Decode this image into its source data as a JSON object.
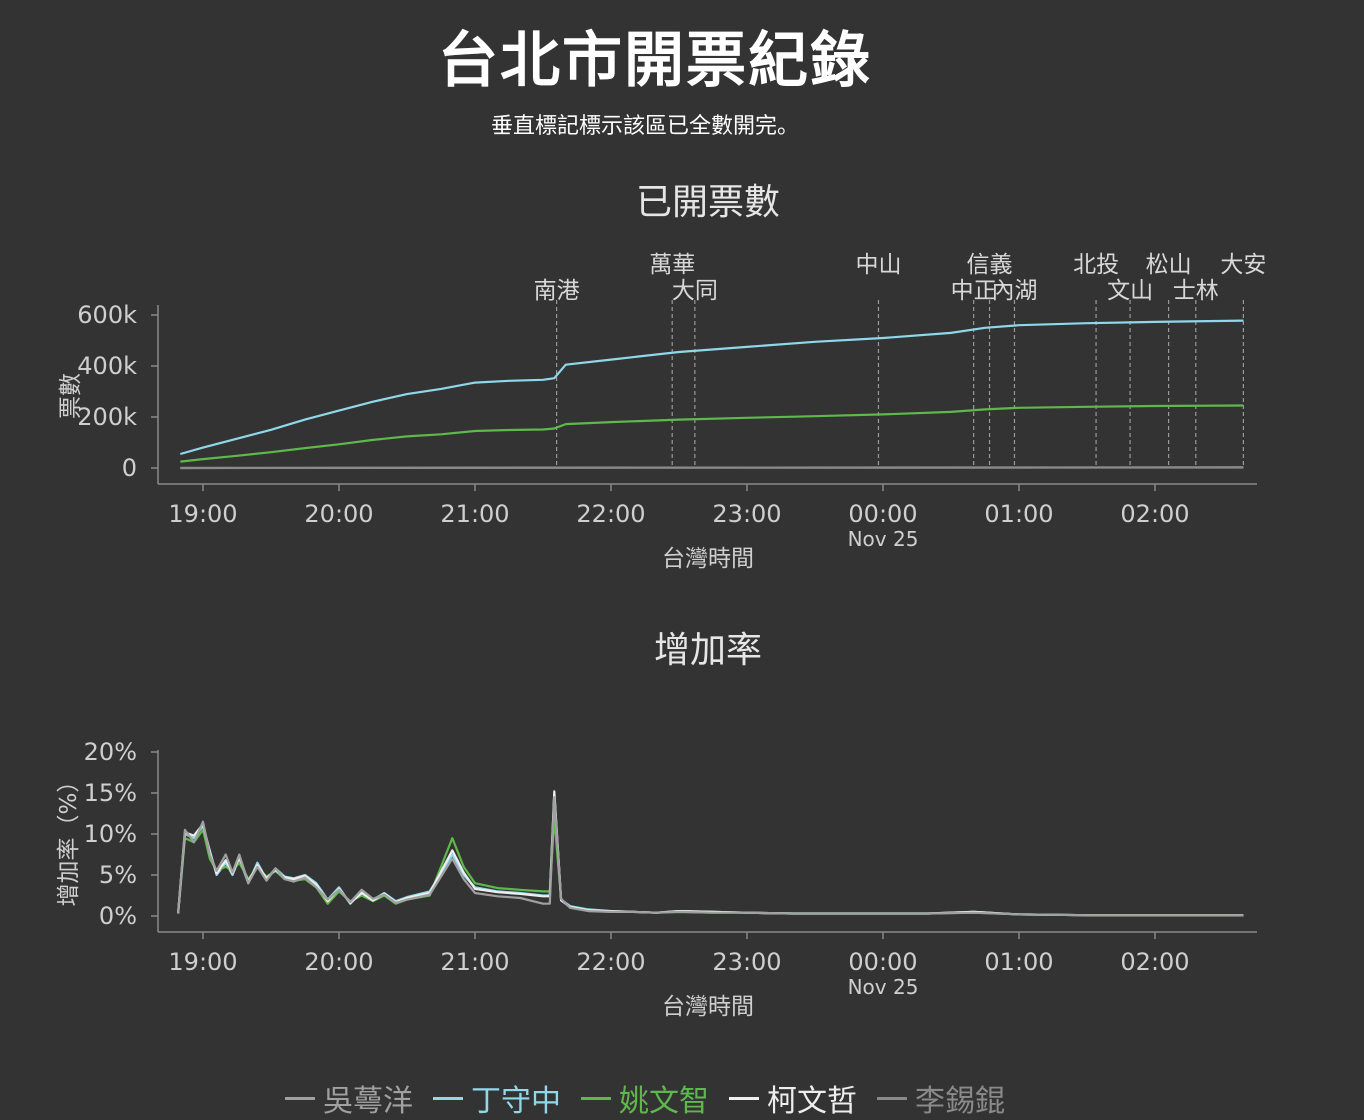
{
  "page": {
    "title": "台北市開票紀錄",
    "subtitle": "垂直標記標示該區已全數開完。"
  },
  "colors": {
    "background": "#333333",
    "axis": "#8a8a8a",
    "marker": "#9a9a9a"
  },
  "legend": [
    {
      "name": "吳蕚洋",
      "color": "#a0a0a0"
    },
    {
      "name": "丁守中",
      "color": "#8fd8ea"
    },
    {
      "name": "姚文智",
      "color": "#5fb84b"
    },
    {
      "name": "柯文哲",
      "color": "#eeeeee"
    },
    {
      "name": "李錫錕",
      "color": "#8a8a8a"
    }
  ],
  "chart_data": [
    {
      "type": "line",
      "title": "已開票數",
      "xlabel": "台灣時間",
      "ylabel": "票數",
      "x_ticks": [
        "19:00",
        "20:00",
        "21:00",
        "22:00",
        "23:00",
        "00:00",
        "01:00",
        "02:00"
      ],
      "x_date_label": "Nov 25",
      "y_ticks": [
        "0",
        "200k",
        "400k",
        "600k"
      ],
      "ylim": [
        0,
        620000
      ],
      "district_markers": [
        {
          "name": "南港",
          "time": "21:36"
        },
        {
          "name": "萬華",
          "time": "22:27"
        },
        {
          "name": "大同",
          "time": "22:37"
        },
        {
          "name": "中山",
          "time": "23:58"
        },
        {
          "name": "中正",
          "time": "00:40"
        },
        {
          "name": "信義",
          "time": "00:47"
        },
        {
          "name": "內湖",
          "time": "00:58"
        },
        {
          "name": "北投",
          "time": "01:34"
        },
        {
          "name": "文山",
          "time": "01:49"
        },
        {
          "name": "松山",
          "time": "02:06"
        },
        {
          "name": "士林",
          "time": "02:18"
        },
        {
          "name": "大安",
          "time": "02:39"
        }
      ],
      "series": [
        {
          "name": "丁守中",
          "color": "#8fd8ea",
          "times": [
            "18:50",
            "19:00",
            "19:15",
            "19:30",
            "19:45",
            "20:00",
            "20:15",
            "20:30",
            "20:45",
            "21:00",
            "21:15",
            "21:30",
            "21:35",
            "21:40",
            "22:00",
            "22:30",
            "23:00",
            "23:30",
            "00:00",
            "00:30",
            "00:45",
            "01:00",
            "01:30",
            "02:00",
            "02:39"
          ],
          "values": [
            55000,
            80000,
            115000,
            150000,
            190000,
            225000,
            260000,
            290000,
            310000,
            335000,
            342000,
            346000,
            352000,
            405000,
            425000,
            455000,
            475000,
            495000,
            510000,
            530000,
            550000,
            560000,
            568000,
            573000,
            578000
          ]
        },
        {
          "name": "姚文智",
          "color": "#5fb84b",
          "times": [
            "18:50",
            "19:00",
            "19:15",
            "19:30",
            "19:45",
            "20:00",
            "20:15",
            "20:30",
            "20:45",
            "21:00",
            "21:15",
            "21:30",
            "21:35",
            "21:40",
            "22:00",
            "22:30",
            "23:00",
            "23:30",
            "00:00",
            "00:30",
            "00:45",
            "01:00",
            "01:30",
            "02:00",
            "02:39"
          ],
          "values": [
            25000,
            35000,
            48000,
            62000,
            78000,
            93000,
            110000,
            124000,
            132000,
            145000,
            149000,
            151000,
            155000,
            172000,
            180000,
            190000,
            197000,
            203000,
            210000,
            220000,
            230000,
            236000,
            240000,
            243000,
            245000
          ]
        },
        {
          "name": "吳蕚洋",
          "color": "#a0a0a0",
          "times": [
            "18:50",
            "21:40",
            "02:39"
          ],
          "values": [
            0,
            1500,
            2500
          ]
        },
        {
          "name": "李錫錕",
          "color": "#8a8a8a",
          "times": [
            "18:50",
            "21:40",
            "02:39"
          ],
          "values": [
            0,
            1000,
            1800
          ]
        }
      ]
    },
    {
      "type": "line",
      "title": "增加率",
      "xlabel": "台灣時間",
      "ylabel": "增加率（%）",
      "x_ticks": [
        "19:00",
        "20:00",
        "21:00",
        "22:00",
        "23:00",
        "00:00",
        "01:00",
        "02:00"
      ],
      "x_date_label": "Nov 25",
      "y_ticks": [
        "0%",
        "5%",
        "10%",
        "15%",
        "20%"
      ],
      "ylim": [
        0,
        20
      ],
      "series": [
        {
          "name": "丁守中",
          "color": "#8fd8ea",
          "times": [
            "18:49",
            "18:52",
            "18:56",
            "19:00",
            "19:03",
            "19:06",
            "19:10",
            "19:13",
            "19:16",
            "19:20",
            "19:24",
            "19:28",
            "19:32",
            "19:36",
            "19:40",
            "19:45",
            "19:50",
            "19:55",
            "20:00",
            "20:05",
            "20:10",
            "20:15",
            "20:20",
            "20:25",
            "20:30",
            "20:40",
            "20:50",
            "20:55",
            "21:00",
            "21:10",
            "21:20",
            "21:30",
            "21:33",
            "21:35",
            "21:38",
            "21:42",
            "21:50",
            "22:00",
            "22:10",
            "22:20",
            "22:30",
            "22:45",
            "23:00",
            "23:20",
            "23:40",
            "00:00",
            "00:20",
            "00:40",
            "01:00",
            "01:30",
            "02:00",
            "02:39"
          ],
          "values": [
            0.3,
            10.0,
            9.5,
            11.0,
            8.0,
            5.0,
            6.5,
            5.0,
            7.0,
            4.0,
            6.5,
            4.5,
            5.8,
            4.8,
            4.6,
            5.0,
            4.0,
            2.0,
            3.5,
            1.5,
            3.0,
            2.0,
            2.8,
            1.8,
            2.3,
            3.0,
            7.5,
            5.0,
            3.5,
            3.0,
            2.8,
            2.5,
            2.5,
            15.0,
            2.0,
            1.2,
            0.8,
            0.6,
            0.5,
            0.4,
            0.6,
            0.5,
            0.4,
            0.3,
            0.3,
            0.3,
            0.3,
            0.5,
            0.2,
            0.1,
            0.1,
            0.1
          ]
        },
        {
          "name": "姚文智",
          "color": "#5fb84b",
          "times": [
            "18:49",
            "18:52",
            "18:56",
            "19:00",
            "19:03",
            "19:06",
            "19:10",
            "19:13",
            "19:16",
            "19:20",
            "19:24",
            "19:28",
            "19:32",
            "19:36",
            "19:40",
            "19:45",
            "19:50",
            "19:55",
            "20:00",
            "20:05",
            "20:10",
            "20:15",
            "20:20",
            "20:25",
            "20:30",
            "20:40",
            "20:50",
            "20:55",
            "21:00",
            "21:10",
            "21:20",
            "21:30",
            "21:33",
            "21:35",
            "21:38",
            "21:42",
            "21:50",
            "22:00",
            "22:10",
            "22:20",
            "22:30",
            "22:45",
            "23:00",
            "23:20",
            "23:40",
            "00:00",
            "00:20",
            "00:40",
            "01:00",
            "01:30",
            "02:00",
            "02:39"
          ],
          "values": [
            0.3,
            9.5,
            9.0,
            10.5,
            7.0,
            5.5,
            6.0,
            5.5,
            6.5,
            4.5,
            6.0,
            4.8,
            5.5,
            4.5,
            4.3,
            4.5,
            3.5,
            1.5,
            3.0,
            1.8,
            2.5,
            1.8,
            2.5,
            1.5,
            2.0,
            2.5,
            9.5,
            6.0,
            4.0,
            3.4,
            3.2,
            3.0,
            3.0,
            12.0,
            2.0,
            1.0,
            0.7,
            0.5,
            0.5,
            0.4,
            0.5,
            0.4,
            0.4,
            0.3,
            0.3,
            0.3,
            0.3,
            0.4,
            0.2,
            0.1,
            0.1,
            0.1
          ]
        },
        {
          "name": "柯文哲",
          "color": "#eeeeee",
          "times": [
            "18:49",
            "18:52",
            "18:56",
            "19:00",
            "19:03",
            "19:06",
            "19:10",
            "19:13",
            "19:16",
            "19:20",
            "19:24",
            "19:28",
            "19:32",
            "19:36",
            "19:40",
            "19:45",
            "19:50",
            "19:55",
            "20:00",
            "20:05",
            "20:10",
            "20:15",
            "20:20",
            "20:25",
            "20:30",
            "20:40",
            "20:50",
            "20:55",
            "21:00",
            "21:10",
            "21:20",
            "21:30",
            "21:33",
            "21:35",
            "21:38",
            "21:42",
            "21:50",
            "22:00",
            "22:10",
            "22:20",
            "22:30",
            "22:45",
            "23:00",
            "23:20",
            "23:40",
            "00:00",
            "00:20",
            "00:40",
            "01:00",
            "01:30",
            "02:00",
            "02:39"
          ],
          "values": [
            0.3,
            10.2,
            9.8,
            11.2,
            7.8,
            5.2,
            6.8,
            5.2,
            7.2,
            4.2,
            6.2,
            4.6,
            5.6,
            4.7,
            4.5,
            4.9,
            3.8,
            1.8,
            3.3,
            1.6,
            2.8,
            1.9,
            2.7,
            1.7,
            2.2,
            2.8,
            8.0,
            5.3,
            3.3,
            2.9,
            2.7,
            2.4,
            2.4,
            15.2,
            1.9,
            1.1,
            0.7,
            0.6,
            0.5,
            0.4,
            0.6,
            0.5,
            0.4,
            0.3,
            0.3,
            0.3,
            0.3,
            0.5,
            0.2,
            0.1,
            0.1,
            0.1
          ]
        },
        {
          "name": "吳蕚洋",
          "color": "#a0a0a0",
          "times": [
            "18:49",
            "18:52",
            "18:56",
            "19:00",
            "19:03",
            "19:06",
            "19:10",
            "19:13",
            "19:16",
            "19:20",
            "19:24",
            "19:28",
            "19:32",
            "19:36",
            "19:40",
            "19:45",
            "19:50",
            "19:55",
            "20:00",
            "20:05",
            "20:10",
            "20:15",
            "20:20",
            "20:25",
            "20:30",
            "20:40",
            "20:50",
            "20:55",
            "21:00",
            "21:10",
            "21:20",
            "21:30",
            "21:33",
            "21:35",
            "21:38",
            "21:42",
            "21:50",
            "22:00",
            "22:10",
            "22:20",
            "22:30",
            "22:45",
            "23:00",
            "23:20",
            "23:40",
            "00:00",
            "00:20",
            "00:40",
            "01:00",
            "01:30",
            "02:00",
            "02:39"
          ],
          "values": [
            0.3,
            10.5,
            9.0,
            11.5,
            7.5,
            5.5,
            7.5,
            5.3,
            7.5,
            4.0,
            6.0,
            4.3,
            5.8,
            4.5,
            4.2,
            4.7,
            3.5,
            2.0,
            3.2,
            1.7,
            3.2,
            2.1,
            2.6,
            1.6,
            2.0,
            2.6,
            7.0,
            4.5,
            2.8,
            2.4,
            2.2,
            1.5,
            1.5,
            14.5,
            2.1,
            1.0,
            0.6,
            0.5,
            0.5,
            0.4,
            0.5,
            0.4,
            0.4,
            0.3,
            0.3,
            0.3,
            0.3,
            0.4,
            0.2,
            0.1,
            0.1,
            0.1
          ]
        }
      ]
    }
  ]
}
